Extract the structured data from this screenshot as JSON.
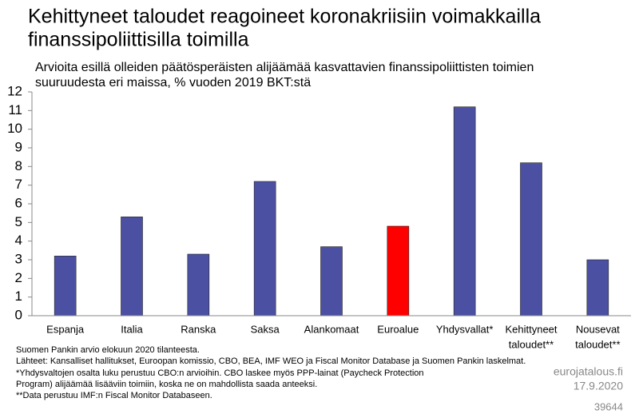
{
  "chart_data": {
    "type": "bar",
    "title": [
      "Kehittyneet taloudet reagoineet koronakriisiin voimakkailla",
      "finanssipoliittisilla toimilla"
    ],
    "subtitle": [
      "Arvioita esillä olleiden päätösperäisten alijäämää kasvattavien finanssipoliittisten toimien",
      "suuruudesta eri maissa,  % vuoden 2019 BKT:stä"
    ],
    "categories": [
      [
        "Espanja"
      ],
      [
        "Italia"
      ],
      [
        "Ranska"
      ],
      [
        "Saksa"
      ],
      [
        "Alankomaat"
      ],
      [
        "Euroalue"
      ],
      [
        "Yhdysvallat*"
      ],
      [
        "Kehittyneet",
        "taloudet**"
      ],
      [
        "Nousevat",
        "taloudet**"
      ]
    ],
    "values": [
      3.2,
      5.3,
      3.3,
      7.2,
      3.7,
      4.8,
      11.2,
      8.2,
      3.0
    ],
    "colors": [
      "#4b50a2",
      "#4b50a2",
      "#4b50a2",
      "#4b50a2",
      "#4b50a2",
      "#ff0000",
      "#4b50a2",
      "#4b50a2",
      "#4b50a2"
    ],
    "ylim": [
      0,
      12
    ],
    "yticks": [
      0,
      1,
      2,
      3,
      4,
      5,
      6,
      7,
      8,
      9,
      10,
      11,
      12
    ],
    "grid": false,
    "notes": [
      "Suomen Pankin arvio elokuun 2020 tilanteesta.",
      "Lähteet: Kansalliset hallitukset, Euroopan komissio, CBO, BEA, IMF WEO ja Fiscal Monitor Database ja Suomen Pankin laskelmat.",
      "*Yhdysvaltojen osalta luku perustuu CBO:n arvioihin. CBO laskee myös PPP-lainat (Paycheck Protection",
      "Program) alijäämää lisääviin toimiin, koska ne on mahdollista saada anteeksi.",
      "**Data perustuu IMF:n Fiscal Monitor Databaseen."
    ],
    "source": "eurojatalous.fi",
    "date": "17.9.2020",
    "id": "39644"
  }
}
